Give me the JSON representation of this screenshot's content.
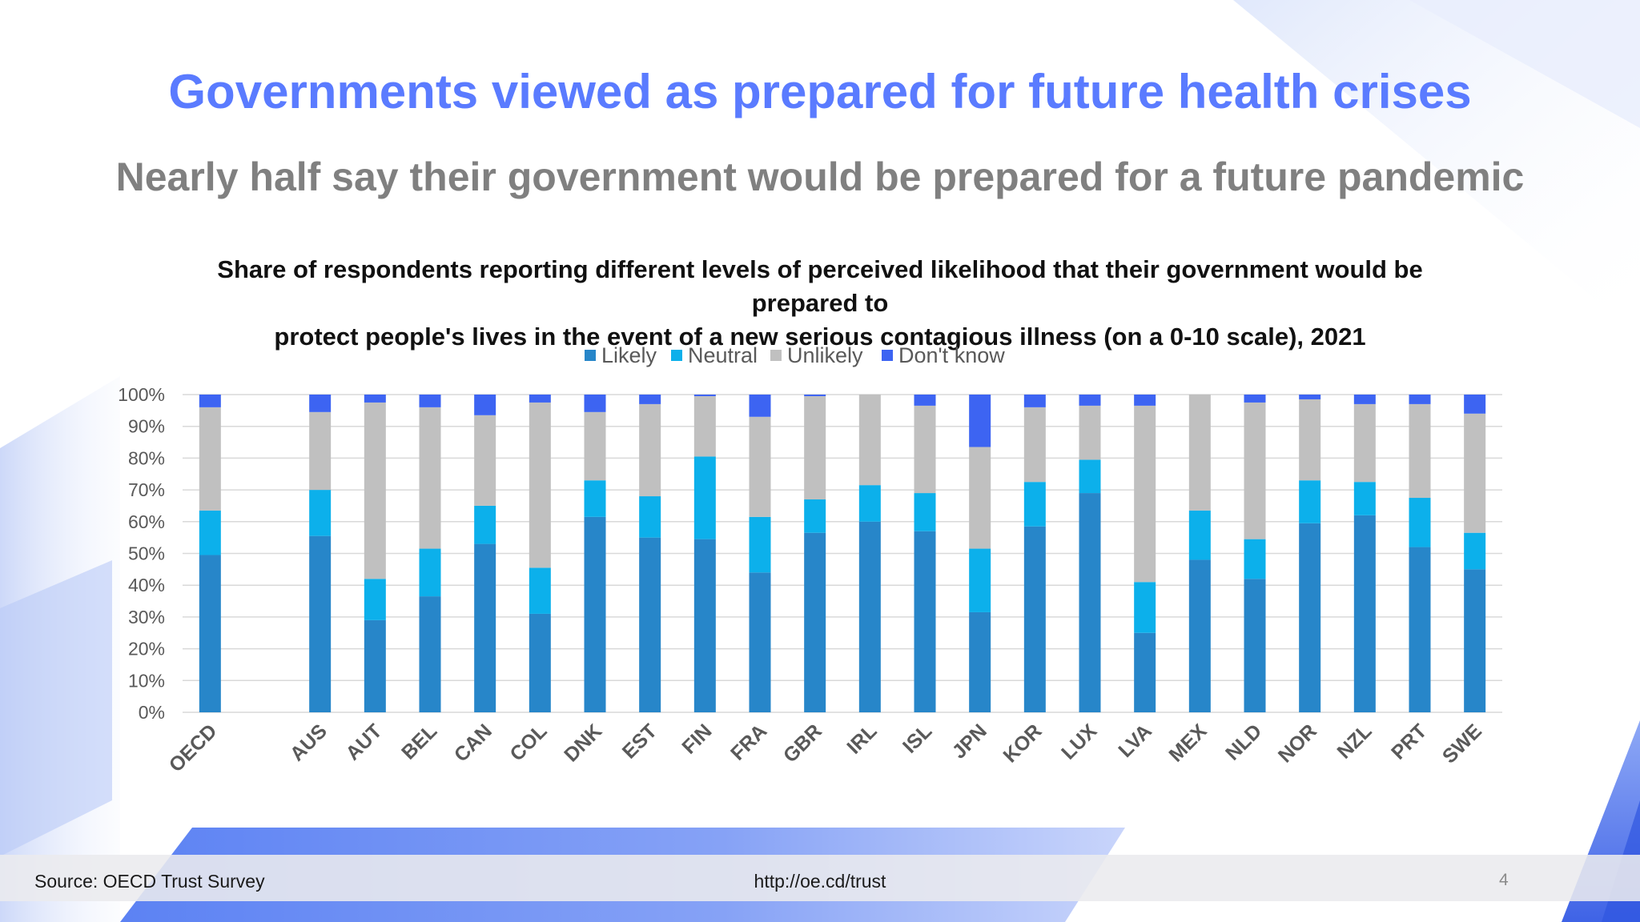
{
  "slide": {
    "title": "Governments viewed as prepared for future health crises",
    "subtitle": "Nearly half say their government would be prepared for a future pandemic",
    "chart_title_line1": "Share of respondents reporting different levels of perceived likelihood that their government would be prepared to",
    "chart_title_line2": "protect people's lives in the event of a new serious contagious illness (on a 0-10 scale), 2021"
  },
  "footer": {
    "source": "Source: OECD Trust Survey",
    "url": "http://oe.cd/trust",
    "page_number": "4"
  },
  "colors": {
    "Likely": "#2786c9",
    "Neutral": "#0cb0eb",
    "Unlikely": "#c0c0c0",
    "Don't know": "#3d64f2",
    "title": "#5a7bff",
    "subtitle": "#808080"
  },
  "chart_data": {
    "type": "bar",
    "stacked": true,
    "title": "Share of respondents reporting different levels of perceived likelihood that their government would be prepared to protect people's lives in the event of a new serious contagious illness (on a 0-10 scale), 2021",
    "categories": [
      "OECD",
      "",
      "AUS",
      "AUT",
      "BEL",
      "CAN",
      "COL",
      "DNK",
      "EST",
      "FIN",
      "FRA",
      "GBR",
      "IRL",
      "ISL",
      "JPN",
      "KOR",
      "LUX",
      "LVA",
      "MEX",
      "NLD",
      "NOR",
      "NZL",
      "PRT",
      "SWE"
    ],
    "series": [
      {
        "name": "Likely",
        "values": [
          49.5,
          null,
          55.5,
          29.0,
          36.5,
          53.0,
          31.0,
          61.5,
          55.0,
          54.5,
          44.0,
          56.5,
          60.0,
          57.0,
          31.5,
          58.5,
          69.0,
          25.0,
          48.0,
          42.0,
          59.5,
          62.0,
          52.0,
          45.0
        ]
      },
      {
        "name": "Neutral",
        "values": [
          14.0,
          null,
          14.5,
          13.0,
          15.0,
          12.0,
          14.5,
          11.5,
          13.0,
          26.0,
          17.5,
          10.5,
          11.5,
          12.0,
          20.0,
          14.0,
          10.5,
          16.0,
          15.5,
          12.5,
          13.5,
          10.5,
          15.5,
          11.5
        ]
      },
      {
        "name": "Unlikely",
        "values": [
          32.5,
          null,
          24.5,
          55.5,
          44.5,
          28.5,
          52.0,
          21.5,
          29.0,
          19.0,
          31.5,
          32.5,
          28.5,
          27.5,
          32.0,
          23.5,
          17.0,
          55.5,
          36.5,
          43.0,
          25.5,
          24.5,
          29.5,
          37.5
        ]
      },
      {
        "name": "Don't know",
        "values": [
          4.0,
          null,
          5.5,
          2.5,
          4.0,
          6.5,
          2.5,
          5.5,
          3.0,
          0.5,
          7.0,
          0.5,
          0.0,
          3.5,
          16.5,
          4.0,
          3.5,
          3.5,
          0.0,
          2.5,
          1.5,
          3.0,
          3.0,
          6.0
        ]
      }
    ],
    "ylim": [
      0,
      100
    ],
    "y_ticks": [
      "0%",
      "10%",
      "20%",
      "30%",
      "40%",
      "50%",
      "60%",
      "70%",
      "80%",
      "90%",
      "100%"
    ],
    "grid": true,
    "legend_position": "top-center",
    "xlabel": "",
    "ylabel": ""
  }
}
